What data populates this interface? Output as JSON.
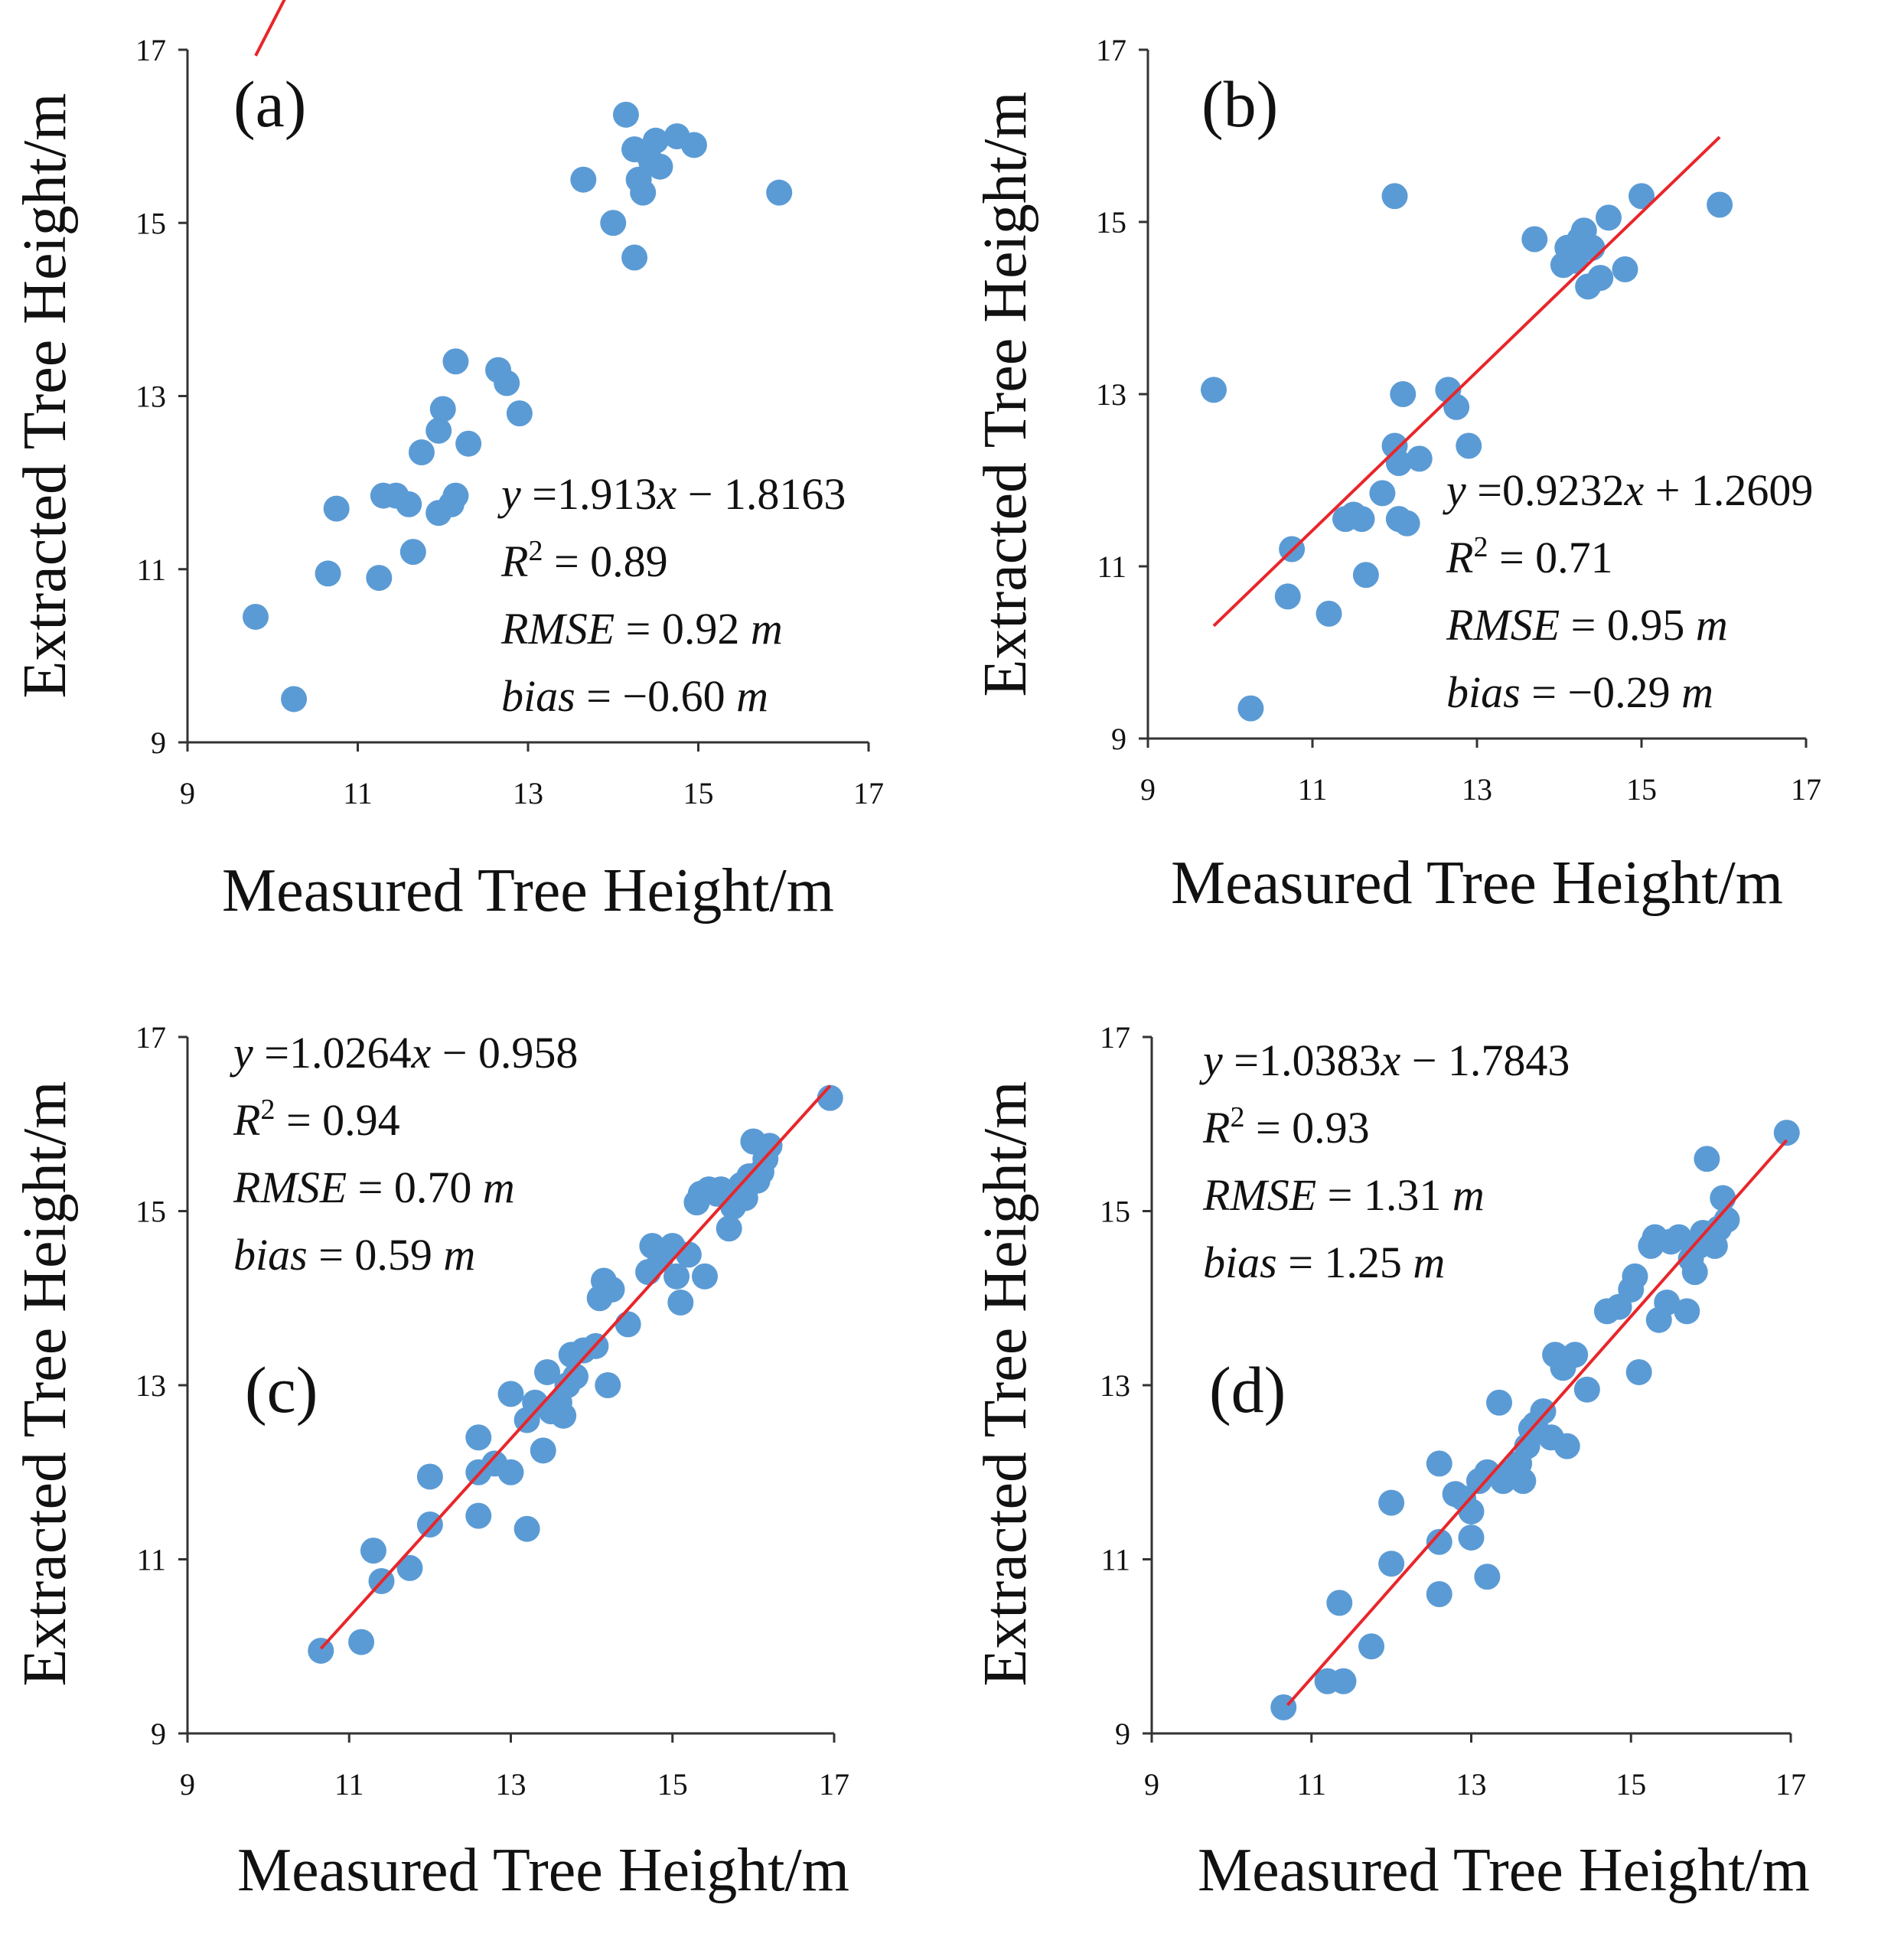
{
  "figure": {
    "point_color": "#5B9BD5",
    "line_color": "#E8262B"
  },
  "chart_data": [
    {
      "type": "scatter",
      "panel_label": "(a)",
      "xlabel": "Measured  Tree Height/m",
      "ylabel": "Extracted  Tree Height/m",
      "xlim": [
        9,
        17
      ],
      "ylim": [
        9,
        17
      ],
      "xticks": [
        "9",
        "11",
        "13",
        "15",
        "17"
      ],
      "yticks": [
        "9",
        "11",
        "13",
        "15",
        "17"
      ],
      "fit": {
        "slope": 1.913,
        "intercept": -1.8163,
        "x_range": [
          9.8,
          15.8
        ]
      },
      "stats": {
        "equation": {
          "y": "y",
          "rest": " =1.913",
          "x": "x",
          "tail": " − 1.8163"
        },
        "r2": {
          "r": "R",
          "sup": "2",
          "value": " = 0.89"
        },
        "rmse": {
          "label": "RMSE",
          "value": " = 0.92 ",
          "unit": "m"
        },
        "bias": {
          "label": "bias",
          "value": " = −0.60 ",
          "unit": "m"
        }
      },
      "points": [
        [
          9.8,
          10.45
        ],
        [
          10.25,
          9.5
        ],
        [
          10.65,
          10.95
        ],
        [
          10.75,
          11.7
        ],
        [
          11.25,
          10.9
        ],
        [
          11.3,
          11.85
        ],
        [
          11.45,
          11.85
        ],
        [
          11.6,
          11.75
        ],
        [
          11.65,
          11.2
        ],
        [
          11.75,
          12.35
        ],
        [
          11.95,
          12.6
        ],
        [
          11.95,
          11.65
        ],
        [
          12.0,
          12.85
        ],
        [
          12.1,
          11.75
        ],
        [
          12.15,
          11.85
        ],
        [
          12.15,
          13.4
        ],
        [
          12.3,
          12.45
        ],
        [
          12.65,
          13.3
        ],
        [
          12.75,
          13.15
        ],
        [
          12.9,
          12.8
        ],
        [
          13.65,
          15.5
        ],
        [
          14.0,
          15.0
        ],
        [
          14.15,
          16.25
        ],
        [
          14.25,
          15.85
        ],
        [
          14.25,
          14.6
        ],
        [
          14.3,
          15.5
        ],
        [
          14.35,
          15.35
        ],
        [
          14.4,
          15.8
        ],
        [
          14.45,
          15.7
        ],
        [
          14.5,
          15.95
        ],
        [
          14.55,
          15.65
        ],
        [
          14.75,
          16.0
        ],
        [
          14.95,
          15.9
        ],
        [
          15.95,
          15.35
        ]
      ]
    },
    {
      "type": "scatter",
      "panel_label": "(b)",
      "xlabel": "Measured  Tree Height/m",
      "ylabel": "Extracted  Tree Height/m",
      "xlim": [
        9,
        17
      ],
      "ylim": [
        9,
        17
      ],
      "xticks": [
        "9",
        "11",
        "13",
        "15",
        "17"
      ],
      "yticks": [
        "9",
        "11",
        "13",
        "15",
        "17"
      ],
      "fit": {
        "slope": 0.9232,
        "intercept": 1.2609,
        "x_range": [
          9.8,
          15.95
        ]
      },
      "stats": {
        "equation": {
          "y": "y",
          "rest": " =0.9232",
          "x": "x",
          "tail": " + 1.2609"
        },
        "r2": {
          "r": "R",
          "sup": "2",
          "value": " = 0.71"
        },
        "rmse": {
          "label": "RMSE",
          "value": " = 0.95 ",
          "unit": "m"
        },
        "bias": {
          "label": "bias",
          "value": " = −0.29 ",
          "unit": "m"
        }
      },
      "points": [
        [
          9.8,
          13.05
        ],
        [
          10.25,
          9.35
        ],
        [
          10.7,
          10.65
        ],
        [
          10.75,
          11.2
        ],
        [
          11.2,
          10.45
        ],
        [
          11.4,
          11.55
        ],
        [
          11.5,
          11.6
        ],
        [
          11.6,
          11.55
        ],
        [
          11.65,
          10.9
        ],
        [
          11.85,
          11.85
        ],
        [
          12.0,
          12.4
        ],
        [
          12.05,
          12.2
        ],
        [
          12.05,
          11.55
        ],
        [
          12.15,
          11.5
        ],
        [
          12.1,
          13.0
        ],
        [
          12.3,
          12.25
        ],
        [
          12.0,
          15.3
        ],
        [
          12.65,
          13.05
        ],
        [
          12.75,
          12.85
        ],
        [
          12.9,
          12.4
        ],
        [
          13.7,
          14.8
        ],
        [
          14.05,
          14.5
        ],
        [
          14.1,
          14.7
        ],
        [
          14.2,
          14.55
        ],
        [
          14.25,
          14.8
        ],
        [
          14.3,
          14.9
        ],
        [
          14.35,
          14.25
        ],
        [
          14.4,
          14.7
        ],
        [
          14.5,
          14.35
        ],
        [
          14.6,
          15.05
        ],
        [
          14.8,
          14.45
        ],
        [
          15.0,
          15.3
        ],
        [
          15.95,
          15.2
        ]
      ]
    },
    {
      "type": "scatter",
      "panel_label": "(c)",
      "xlabel": "Measured  Tree Height/m",
      "ylabel": "Extracted  Tree Height/m",
      "xlim": [
        9,
        17
      ],
      "ylim": [
        9,
        17
      ],
      "xticks": [
        "9",
        "11",
        "13",
        "15",
        "17"
      ],
      "yticks": [
        "9",
        "11",
        "13",
        "15",
        "17"
      ],
      "fit": {
        "slope": 1.0264,
        "intercept": -0.958,
        "x_range": [
          10.65,
          16.95
        ]
      },
      "stats": {
        "equation": {
          "y": "y",
          "rest": " =1.0264",
          "x": "x",
          "tail": " − 0.958"
        },
        "r2": {
          "r": "R",
          "sup": "2",
          "value": " = 0.94"
        },
        "rmse": {
          "label": "RMSE",
          "value": " = 0.70 ",
          "unit": "m"
        },
        "bias": {
          "label": "bias",
          "value": " = 0.59 ",
          "unit": "m"
        }
      },
      "points": [
        [
          10.65,
          9.95
        ],
        [
          11.15,
          10.05
        ],
        [
          11.3,
          11.1
        ],
        [
          11.4,
          10.75
        ],
        [
          11.75,
          10.9
        ],
        [
          12.0,
          11.4
        ],
        [
          12.0,
          11.95
        ],
        [
          12.6,
          11.5
        ],
        [
          12.6,
          12.0
        ],
        [
          12.6,
          12.4
        ],
        [
          12.8,
          12.1
        ],
        [
          13.0,
          12.0
        ],
        [
          13.0,
          12.9
        ],
        [
          13.2,
          11.35
        ],
        [
          13.2,
          12.6
        ],
        [
          13.3,
          12.8
        ],
        [
          13.4,
          12.25
        ],
        [
          13.45,
          13.15
        ],
        [
          13.5,
          12.7
        ],
        [
          13.6,
          12.8
        ],
        [
          13.65,
          12.65
        ],
        [
          13.7,
          13.0
        ],
        [
          13.75,
          13.35
        ],
        [
          13.8,
          13.1
        ],
        [
          13.9,
          13.4
        ],
        [
          14.05,
          13.45
        ],
        [
          14.1,
          14.0
        ],
        [
          14.15,
          14.2
        ],
        [
          14.2,
          13.0
        ],
        [
          14.25,
          14.1
        ],
        [
          14.45,
          13.7
        ],
        [
          14.7,
          14.3
        ],
        [
          14.75,
          14.6
        ],
        [
          14.85,
          14.45
        ],
        [
          15.0,
          14.6
        ],
        [
          15.05,
          14.25
        ],
        [
          15.1,
          13.95
        ],
        [
          15.2,
          14.5
        ],
        [
          15.3,
          15.1
        ],
        [
          15.35,
          15.2
        ],
        [
          15.4,
          14.25
        ],
        [
          15.45,
          15.25
        ],
        [
          15.55,
          15.2
        ],
        [
          15.6,
          15.25
        ],
        [
          15.7,
          14.8
        ],
        [
          15.75,
          15.05
        ],
        [
          15.8,
          15.2
        ],
        [
          15.85,
          15.3
        ],
        [
          15.9,
          15.15
        ],
        [
          15.95,
          15.4
        ],
        [
          16.0,
          15.8
        ],
        [
          16.05,
          15.35
        ],
        [
          16.1,
          15.45
        ],
        [
          16.15,
          15.6
        ],
        [
          16.2,
          15.75
        ],
        [
          16.95,
          16.3
        ]
      ]
    },
    {
      "type": "scatter",
      "panel_label": "(d)",
      "xlabel": "Measured  Tree Height/m",
      "ylabel": "Extracted  Tree Height/m",
      "xlim": [
        9,
        17
      ],
      "ylim": [
        9,
        17
      ],
      "xticks": [
        "9",
        "11",
        "13",
        "15",
        "17"
      ],
      "yticks": [
        "9",
        "11",
        "13",
        "15",
        "17"
      ],
      "fit": {
        "slope": 1.0383,
        "intercept": -1.7843,
        "x_range": [
          10.7,
          16.95
        ]
      },
      "stats": {
        "equation": {
          "y": "y",
          "rest": " =1.0383",
          "x": "x",
          "tail": " − 1.7843"
        },
        "r2": {
          "r": "R",
          "sup": "2",
          "value": " = 0.93"
        },
        "rmse": {
          "label": "RMSE",
          "value": " = 1.31 ",
          "unit": "m"
        },
        "bias": {
          "label": "bias",
          "value": " = 1.25 ",
          "unit": "m"
        }
      },
      "points": [
        [
          10.65,
          9.3
        ],
        [
          11.2,
          9.6
        ],
        [
          11.4,
          9.6
        ],
        [
          11.35,
          10.5
        ],
        [
          11.75,
          10.0
        ],
        [
          12.0,
          10.95
        ],
        [
          12.0,
          11.65
        ],
        [
          12.6,
          11.2
        ],
        [
          12.6,
          12.1
        ],
        [
          12.6,
          10.6
        ],
        [
          12.8,
          11.75
        ],
        [
          12.9,
          11.7
        ],
        [
          13.0,
          11.25
        ],
        [
          13.0,
          11.55
        ],
        [
          13.1,
          11.9
        ],
        [
          13.2,
          12.0
        ],
        [
          13.2,
          10.8
        ],
        [
          13.35,
          12.8
        ],
        [
          13.4,
          11.9
        ],
        [
          13.5,
          12.0
        ],
        [
          13.6,
          12.1
        ],
        [
          13.65,
          11.9
        ],
        [
          13.7,
          12.3
        ],
        [
          13.75,
          12.5
        ],
        [
          13.8,
          12.55
        ],
        [
          13.9,
          12.7
        ],
        [
          14.0,
          12.4
        ],
        [
          14.05,
          13.35
        ],
        [
          14.15,
          13.2
        ],
        [
          14.2,
          12.3
        ],
        [
          14.3,
          13.35
        ],
        [
          14.45,
          12.95
        ],
        [
          14.7,
          13.85
        ],
        [
          14.85,
          13.9
        ],
        [
          15.0,
          14.1
        ],
        [
          15.05,
          14.25
        ],
        [
          15.1,
          13.15
        ],
        [
          15.25,
          14.6
        ],
        [
          15.3,
          14.7
        ],
        [
          15.35,
          13.75
        ],
        [
          15.45,
          13.95
        ],
        [
          15.5,
          14.65
        ],
        [
          15.6,
          14.7
        ],
        [
          15.7,
          13.85
        ],
        [
          15.75,
          14.45
        ],
        [
          15.8,
          14.3
        ],
        [
          15.85,
          14.6
        ],
        [
          15.9,
          14.75
        ],
        [
          15.95,
          15.6
        ],
        [
          16.05,
          14.6
        ],
        [
          16.1,
          14.8
        ],
        [
          16.15,
          15.15
        ],
        [
          16.2,
          14.9
        ],
        [
          16.95,
          15.9
        ]
      ]
    }
  ]
}
